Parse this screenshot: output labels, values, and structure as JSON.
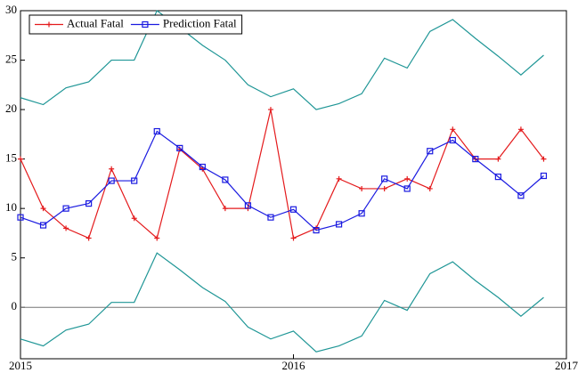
{
  "chart_data": {
    "type": "line",
    "x": [
      0,
      1,
      2,
      3,
      4,
      5,
      6,
      7,
      8,
      9,
      10,
      11,
      12,
      13,
      14,
      15,
      16,
      17,
      18,
      19,
      20,
      21,
      22,
      23
    ],
    "xlim": [
      0,
      24
    ],
    "xticks": [
      {
        "value": 0,
        "label": "2015"
      },
      {
        "value": 12,
        "label": "2016"
      },
      {
        "value": 24,
        "label": "2017"
      }
    ],
    "ylim": [
      -5.2,
      30
    ],
    "yticks": [
      0,
      5,
      10,
      15,
      20,
      25,
      30
    ],
    "hline": 0,
    "legend": "upper-left",
    "series": [
      {
        "name": "Actual Fatal",
        "color": "#e41a1c",
        "marker": "plus",
        "values": [
          15,
          10,
          8,
          7,
          14,
          9,
          7,
          16,
          14,
          10,
          10,
          20,
          7,
          8,
          13,
          12,
          12,
          13,
          12,
          18,
          15,
          15,
          18,
          15
        ]
      },
      {
        "name": "Prediction Fatal",
        "color": "#1a1ae0",
        "marker": "square",
        "values": [
          9.1,
          8.3,
          10.0,
          10.5,
          12.8,
          12.8,
          17.8,
          16.1,
          14.2,
          12.9,
          10.3,
          9.1,
          9.9,
          7.8,
          8.4,
          9.5,
          13.0,
          12.0,
          15.8,
          16.9,
          15.0,
          13.2,
          11.3,
          13.3
        ]
      },
      {
        "color": "#1f9696",
        "values": [
          21.2,
          20.5,
          22.2,
          22.8,
          25.0,
          25.0,
          30.0,
          28.3,
          26.5,
          25.0,
          22.5,
          21.3,
          22.1,
          20.0,
          20.6,
          21.6,
          25.2,
          24.2,
          27.9,
          29.1,
          27.2,
          25.4,
          23.5,
          25.5
        ]
      },
      {
        "color": "#1f9696",
        "values": [
          -3.2,
          -3.9,
          -2.3,
          -1.7,
          0.5,
          0.5,
          5.5,
          3.8,
          2.0,
          0.6,
          -2.0,
          -3.2,
          -2.4,
          -4.5,
          -3.9,
          -2.9,
          0.7,
          -0.3,
          3.4,
          4.6,
          2.7,
          1.0,
          -0.9,
          1.0
        ]
      }
    ]
  }
}
